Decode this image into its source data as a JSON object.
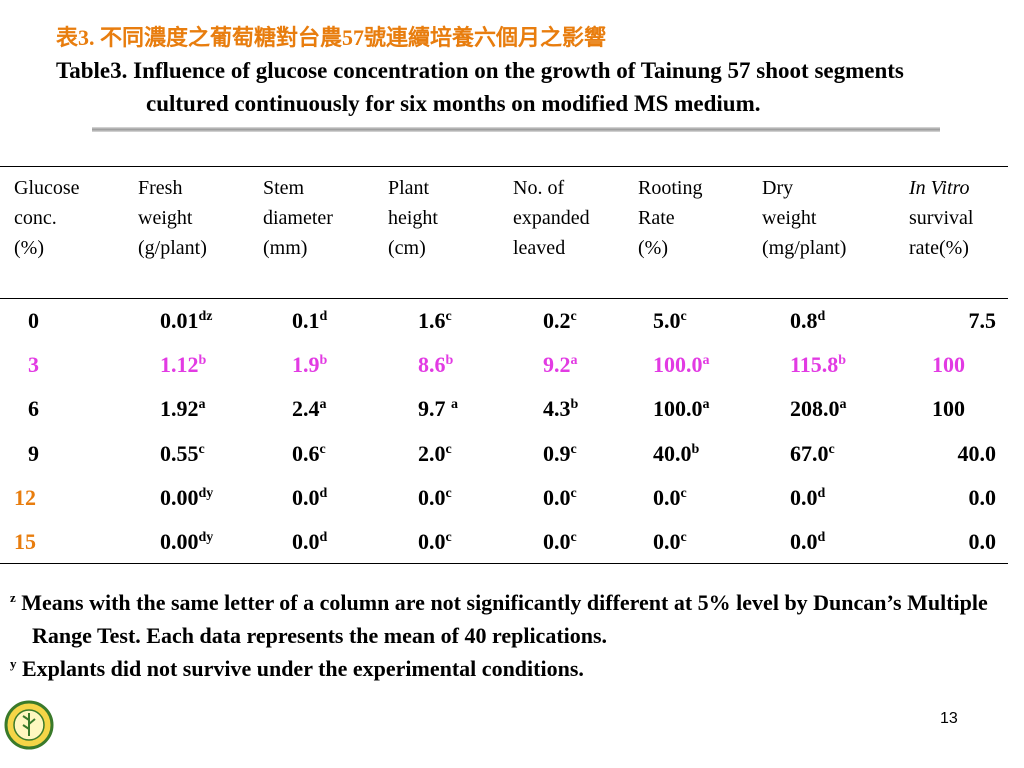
{
  "title_zh": "表3. 不同濃度之葡萄糖對台農57號連續培養六個月之影響",
  "title_en": "Table3. Influence of glucose concentration on the growth of Tainung 57 shoot segments cultured continuously for six months on modified MS medium.",
  "table": {
    "headers": [
      [
        "Glucose",
        "conc.",
        "(%)"
      ],
      [
        "Fresh",
        "weight",
        "(g/plant)"
      ],
      [
        "Stem",
        "diameter",
        "(mm)"
      ],
      [
        "Plant",
        "height",
        "(cm)"
      ],
      [
        "No. of",
        "expanded",
        "leaved"
      ],
      [
        "Rooting",
        "Rate",
        "(%)"
      ],
      [
        "Dry",
        "weight",
        "(mg/plant)"
      ],
      [
        "In Vitro",
        "survival",
        "rate(%)"
      ]
    ],
    "rows": [
      [
        "0",
        {
          "v": "0.01",
          "s": "dz"
        },
        {
          "v": "0.1",
          "s": "d"
        },
        {
          "v": "1.6",
          "s": "c"
        },
        {
          "v": "0.2",
          "s": "c"
        },
        {
          "v": "5.0",
          "s": "c"
        },
        {
          "v": "0.8",
          "s": "d"
        },
        "7.5"
      ],
      [
        "3",
        {
          "v": "1.12",
          "s": "b"
        },
        {
          "v": "1.9",
          "s": "b"
        },
        {
          "v": "8.6",
          "s": "b"
        },
        {
          "v": "9.2",
          "s": "a"
        },
        {
          "v": "100.0",
          "s": "a"
        },
        {
          "v": "115.8",
          "s": "b"
        },
        "100"
      ],
      [
        "6",
        {
          "v": "1.92",
          "s": "a"
        },
        {
          "v": "2.4",
          "s": "a"
        },
        {
          "v": "9.7 ",
          "s": "a"
        },
        {
          "v": "4.3",
          "s": "b"
        },
        {
          "v": "100.0",
          "s": "a"
        },
        {
          "v": "208.0",
          "s": "a"
        },
        "100"
      ],
      [
        "9",
        {
          "v": "0.55",
          "s": "c"
        },
        {
          "v": "0.6",
          "s": "c"
        },
        {
          "v": "2.0",
          "s": "c"
        },
        {
          "v": "0.9",
          "s": "c"
        },
        {
          "v": "40.0",
          "s": "b"
        },
        {
          "v": "67.0",
          "s": "c"
        },
        "40.0"
      ],
      [
        "12",
        {
          "v": "0.00",
          "s": "dy"
        },
        {
          "v": "0.0",
          "s": "d"
        },
        {
          "v": "0.0",
          "s": "c"
        },
        {
          "v": "0.0",
          "s": "c"
        },
        {
          "v": "0.0",
          "s": "c"
        },
        {
          "v": "0.0",
          "s": "d"
        },
        "0.0"
      ],
      [
        "15",
        {
          "v": "0.00",
          "s": "dy"
        },
        {
          "v": "0.0",
          "s": "d"
        },
        {
          "v": "0.0",
          "s": "c"
        },
        {
          "v": "0.0",
          "s": "c"
        },
        {
          "v": "0.0",
          "s": "c"
        },
        {
          "v": "0.0",
          "s": "d"
        },
        "0.0"
      ]
    ]
  },
  "footnotes": [
    {
      "mark": "z",
      "text": "Means with the same letter of a column are not significantly different at 5% level by Duncan’s Multiple Range Test. Each data represents the mean of 40 replications."
    },
    {
      "mark": "y",
      "text": "Explants did not survive under the experimental conditions."
    }
  ],
  "page_number": "13"
}
